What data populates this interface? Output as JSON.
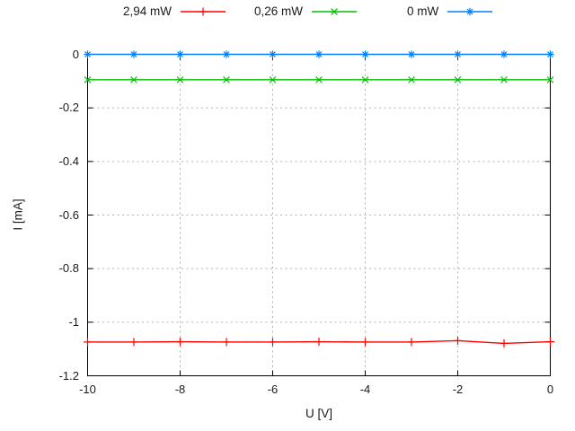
{
  "figure": {
    "background": "#ffffff",
    "axis_color": "#000000",
    "grid_color": "#b0b0b0",
    "text_color": "#1a1a1a"
  },
  "chart_data": {
    "type": "line",
    "title": "",
    "xlabel": "U [V]",
    "ylabel": "I [mA]",
    "xlim": [
      -10,
      0
    ],
    "ylim": [
      -1.2,
      0
    ],
    "grid": true,
    "legend_position": "top-center-outside-horizontal",
    "xticks": {
      "values": [
        -10,
        -8,
        -6,
        -4,
        -2,
        0
      ],
      "labels": [
        "-10",
        "-8",
        "-6",
        "-4",
        "-2",
        "0"
      ]
    },
    "yticks": {
      "values": [
        0,
        -0.2,
        -0.4,
        -0.6,
        -0.8,
        -1,
        -1.2
      ],
      "labels": [
        "0",
        "-0.2",
        "-0.4",
        "-0.6",
        "-0.8",
        "-1",
        "-1.2"
      ]
    },
    "x": [
      -10,
      -9,
      -8,
      -7,
      -6,
      -5,
      -4,
      -3,
      -2,
      -1,
      0
    ],
    "series": [
      {
        "name": "2,94 mW",
        "color": "#ff0000",
        "marker": "plus",
        "values": [
          -1.074,
          -1.074,
          -1.073,
          -1.074,
          -1.074,
          -1.073,
          -1.074,
          -1.074,
          -1.069,
          -1.079,
          -1.073
        ]
      },
      {
        "name": "0,26 mW",
        "color": "#00c000",
        "marker": "cross",
        "values": [
          -0.095,
          -0.095,
          -0.095,
          -0.095,
          -0.095,
          -0.095,
          -0.095,
          -0.095,
          -0.095,
          -0.095,
          -0.095
        ]
      },
      {
        "name": "0 mW",
        "color": "#0080ff",
        "marker": "asterisk",
        "values": [
          0,
          0,
          0,
          0,
          0,
          0,
          0,
          0,
          0,
          0,
          0
        ]
      }
    ]
  }
}
